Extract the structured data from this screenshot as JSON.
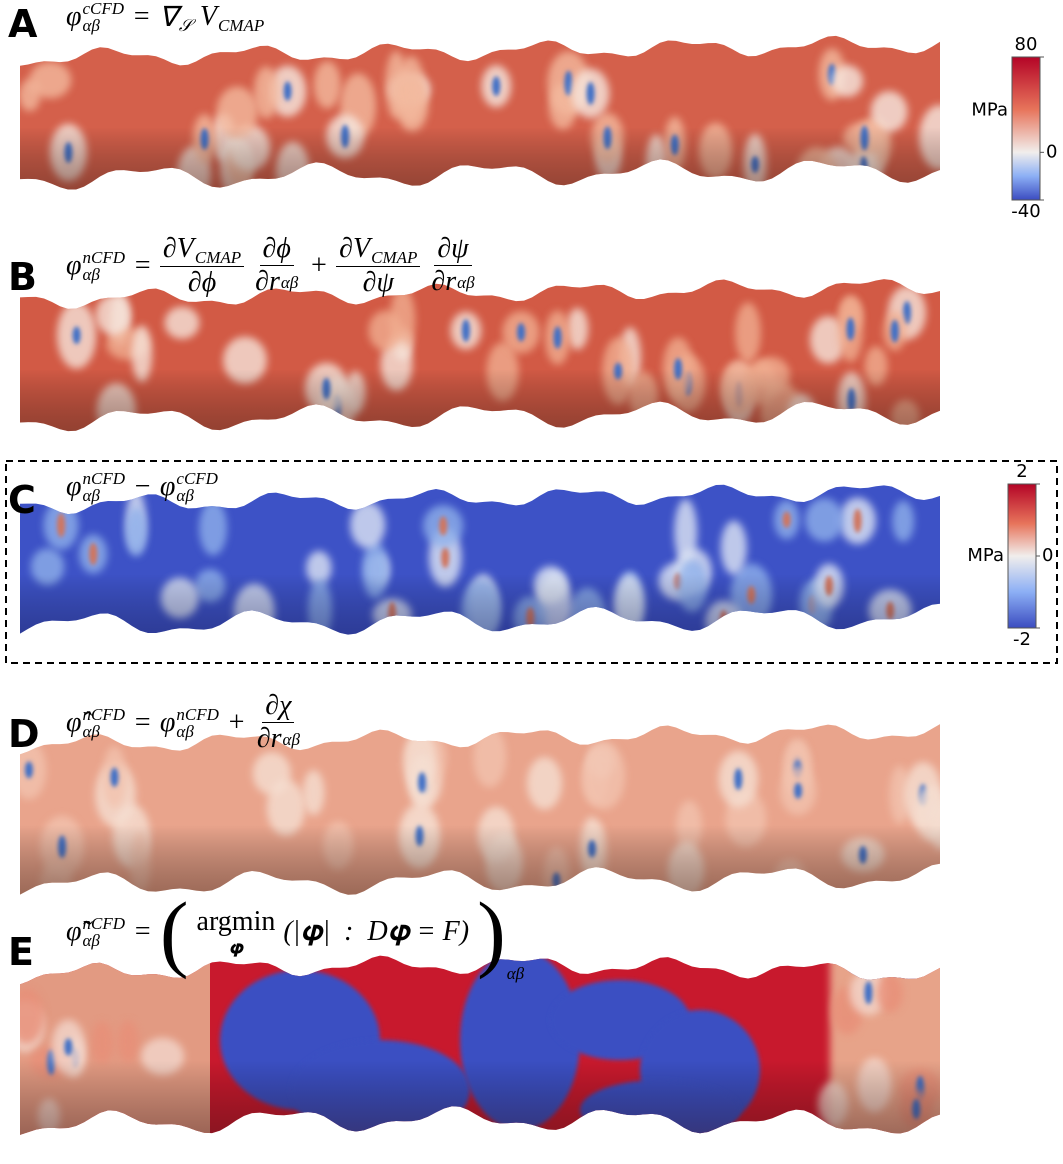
{
  "panels": [
    {
      "label": "A",
      "equation": [
        {
          "text": "φ",
          "sub": "αβ",
          "sup": "cCFD"
        },
        {
          "text": "="
        },
        {
          "text": "∇",
          "sub": "𝒮"
        },
        {
          "text": "V",
          "sub": "CMAP"
        }
      ],
      "colorbar": {
        "unit": "MPa",
        "ylim": [
          -40,
          80
        ],
        "yticks": [
          80,
          0,
          -40
        ]
      }
    },
    {
      "label": "B",
      "equation": [
        {
          "text": "φ",
          "sub": "αβ",
          "sup": "nCFD"
        },
        {
          "text": "="
        },
        {
          "num": {
            "text": "∂V",
            "sub": "CMAP"
          },
          "den": {
            "text": "∂ϕ"
          }
        },
        {
          "num": {
            "text": "∂ϕ"
          },
          "den": {
            "text": "∂r",
            "sup": "αβ"
          }
        },
        {
          "text": "+"
        },
        {
          "num": {
            "text": "∂V",
            "sub": "CMAP"
          },
          "den": {
            "text": "∂ψ"
          }
        },
        {
          "num": {
            "text": "∂ψ"
          },
          "den": {
            "text": "∂r",
            "sup": "αβ"
          }
        }
      ]
    },
    {
      "label": "C",
      "equation": [
        {
          "text": "φ",
          "sub": "αβ",
          "sup": "nCFD"
        },
        {
          "text": "−"
        },
        {
          "text": "φ",
          "sub": "αβ",
          "sup": "cCFD"
        }
      ],
      "colorbar": {
        "unit": "MPa",
        "ylim": [
          -2,
          2
        ],
        "yticks": [
          2,
          0,
          -2
        ]
      }
    },
    {
      "label": "D",
      "equation": [
        {
          "text": "φ̂",
          "sub": "αβ",
          "sup": "nCFD"
        },
        {
          "text": "="
        },
        {
          "text": "φ",
          "sub": "αβ",
          "sup": "nCFD"
        },
        {
          "text": "+"
        },
        {
          "num": {
            "text": "∂χ"
          },
          "den": {
            "text": "∂r",
            "sup": "αβ"
          }
        }
      ]
    },
    {
      "label": "E",
      "equation": [
        {
          "text": "φ̃",
          "sub": "αβ",
          "sup": "nCFD"
        },
        {
          "text": "="
        },
        {
          "text": "(",
          "big": true
        },
        {
          "text": "argmin",
          "under": "𝛗"
        },
        {
          "text": "(|𝛗|  :  D𝛗 = F)"
        },
        {
          "text": ")",
          "big": true,
          "sub": "αβ"
        }
      ]
    }
  ]
}
